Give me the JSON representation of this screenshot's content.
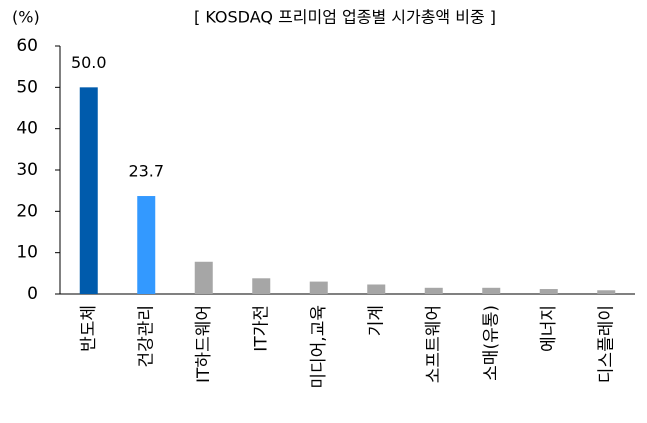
{
  "chart_data": {
    "type": "bar",
    "title": "[ KOSDAQ 프리미엄 업종별 시가총액 비중 ]",
    "y_label": "(%)",
    "categories": [
      "반도체",
      "건강관리",
      "IT하드웨어",
      "IT가전",
      "미디어,교육",
      "기계",
      "소프트웨어",
      "소매(유통)",
      "에너지",
      "디스플레이"
    ],
    "values": [
      50.0,
      23.7,
      7.8,
      3.8,
      3.0,
      2.3,
      1.5,
      1.5,
      1.2,
      0.9
    ],
    "value_labels": [
      "50.0",
      "23.7",
      null,
      null,
      null,
      null,
      null,
      null,
      null,
      null
    ],
    "colors": [
      "#005bac",
      "#3399ff",
      "#a6a6a6",
      "#a6a6a6",
      "#a6a6a6",
      "#a6a6a6",
      "#a6a6a6",
      "#a6a6a6",
      "#a6a6a6",
      "#a6a6a6"
    ],
    "ylim": [
      0,
      60
    ],
    "yticks": [
      0,
      10,
      20,
      30,
      40,
      50,
      60
    ],
    "grid": false
  }
}
